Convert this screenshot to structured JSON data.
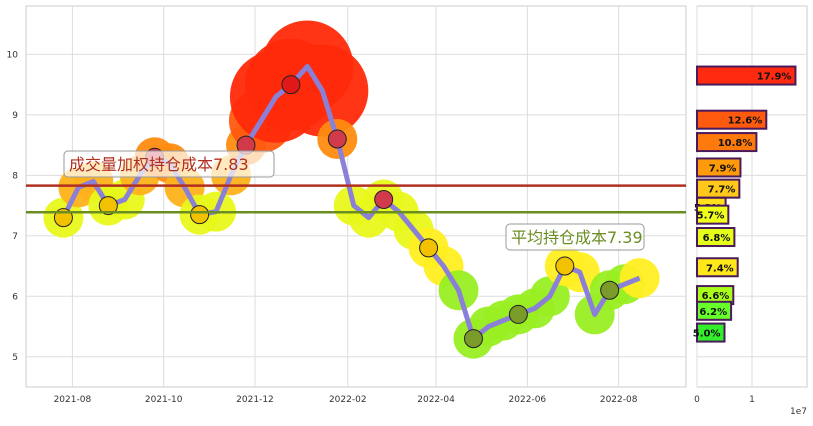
{
  "chart_data": [
    {
      "type": "line",
      "title": "",
      "xlabel": "",
      "ylabel": "",
      "x_ticks": [
        "2021-08",
        "2021-10",
        "2021-12",
        "2022-02",
        "2022-04",
        "2022-06",
        "2022-08"
      ],
      "y_ticks": [
        "5",
        "6",
        "7",
        "8",
        "9",
        "10"
      ],
      "ylim": [
        4.5,
        10.8
      ],
      "xlim": [
        "2021-07-01",
        "2022-09-15"
      ],
      "grid": true,
      "series": [
        {
          "color": "#8b80d8",
          "x": [
            "2021-07-26",
            "2021-08-05",
            "2021-08-15",
            "2021-08-25",
            "2021-09-05",
            "2021-09-15",
            "2021-09-25",
            "2021-10-05",
            "2021-10-15",
            "2021-10-25",
            "2021-11-05",
            "2021-11-15",
            "2021-11-25",
            "2021-12-05",
            "2021-12-15",
            "2021-12-25",
            "2022-01-05",
            "2022-01-15",
            "2022-01-25",
            "2022-02-05",
            "2022-02-15",
            "2022-02-25",
            "2022-03-07",
            "2022-03-17",
            "2022-03-27",
            "2022-04-06",
            "2022-04-16",
            "2022-04-26",
            "2022-05-06",
            "2022-05-16",
            "2022-05-26",
            "2022-06-06",
            "2022-06-16",
            "2022-06-26",
            "2022-07-06",
            "2022-07-16",
            "2022-07-26",
            "2022-08-05",
            "2022-08-15"
          ],
          "y": [
            7.3,
            7.8,
            7.9,
            7.5,
            7.6,
            8.0,
            8.3,
            8.2,
            7.8,
            7.35,
            7.4,
            8.0,
            8.5,
            8.9,
            9.3,
            9.5,
            9.8,
            9.4,
            8.6,
            7.5,
            7.3,
            7.6,
            7.4,
            7.1,
            6.8,
            6.5,
            6.1,
            5.3,
            5.5,
            5.6,
            5.7,
            5.8,
            6.0,
            6.5,
            6.4,
            5.7,
            6.1,
            6.2,
            6.3
          ]
        }
      ],
      "hlines": [
        {
          "label": "成交量加权持仓成本7.83",
          "value": 7.83,
          "color": "#b03020"
        },
        {
          "label": "平均持仓成本7.39",
          "value": 7.39,
          "color": "#6b8e23"
        }
      ]
    },
    {
      "type": "bar",
      "orientation": "horizontal",
      "x_ticks": [
        "0",
        "1"
      ],
      "x_scale_note": "1e7",
      "xlim": [
        0,
        2.0
      ],
      "ylim": [
        4.5,
        10.8
      ],
      "bars": [
        {
          "price": 9.65,
          "value": 1.79,
          "label": "17.9%",
          "color": "#ff2a10"
        },
        {
          "price": 8.92,
          "value": 1.26,
          "label": "12.6%",
          "color": "#ff5a0e"
        },
        {
          "price": 8.55,
          "value": 1.08,
          "label": "10.8%",
          "color": "#ff7a0c"
        },
        {
          "price": 8.13,
          "value": 0.79,
          "label": "7.9%",
          "color": "#ff9a0a"
        },
        {
          "price": 7.78,
          "value": 0.77,
          "label": "7.7%",
          "color": "#ffc81a"
        },
        {
          "price": 7.48,
          "value": 0.52,
          "label": "5.2%",
          "color": "#ffe01a"
        },
        {
          "price": 7.35,
          "value": 0.57,
          "label": "5.7%",
          "color": "#f0ff1a"
        },
        {
          "price": 6.98,
          "value": 0.68,
          "label": "6.8%",
          "color": "#e6ff1a"
        },
        {
          "price": 6.48,
          "value": 0.74,
          "label": "7.4%",
          "color": "#ffe81a"
        },
        {
          "price": 6.02,
          "value": 0.66,
          "label": "6.6%",
          "color": "#aaff1a"
        },
        {
          "price": 5.76,
          "value": 0.62,
          "label": "6.2%",
          "color": "#66ff2a"
        },
        {
          "price": 5.4,
          "value": 0.5,
          "label": "5.0%",
          "color": "#33ee2a"
        }
      ]
    }
  ]
}
